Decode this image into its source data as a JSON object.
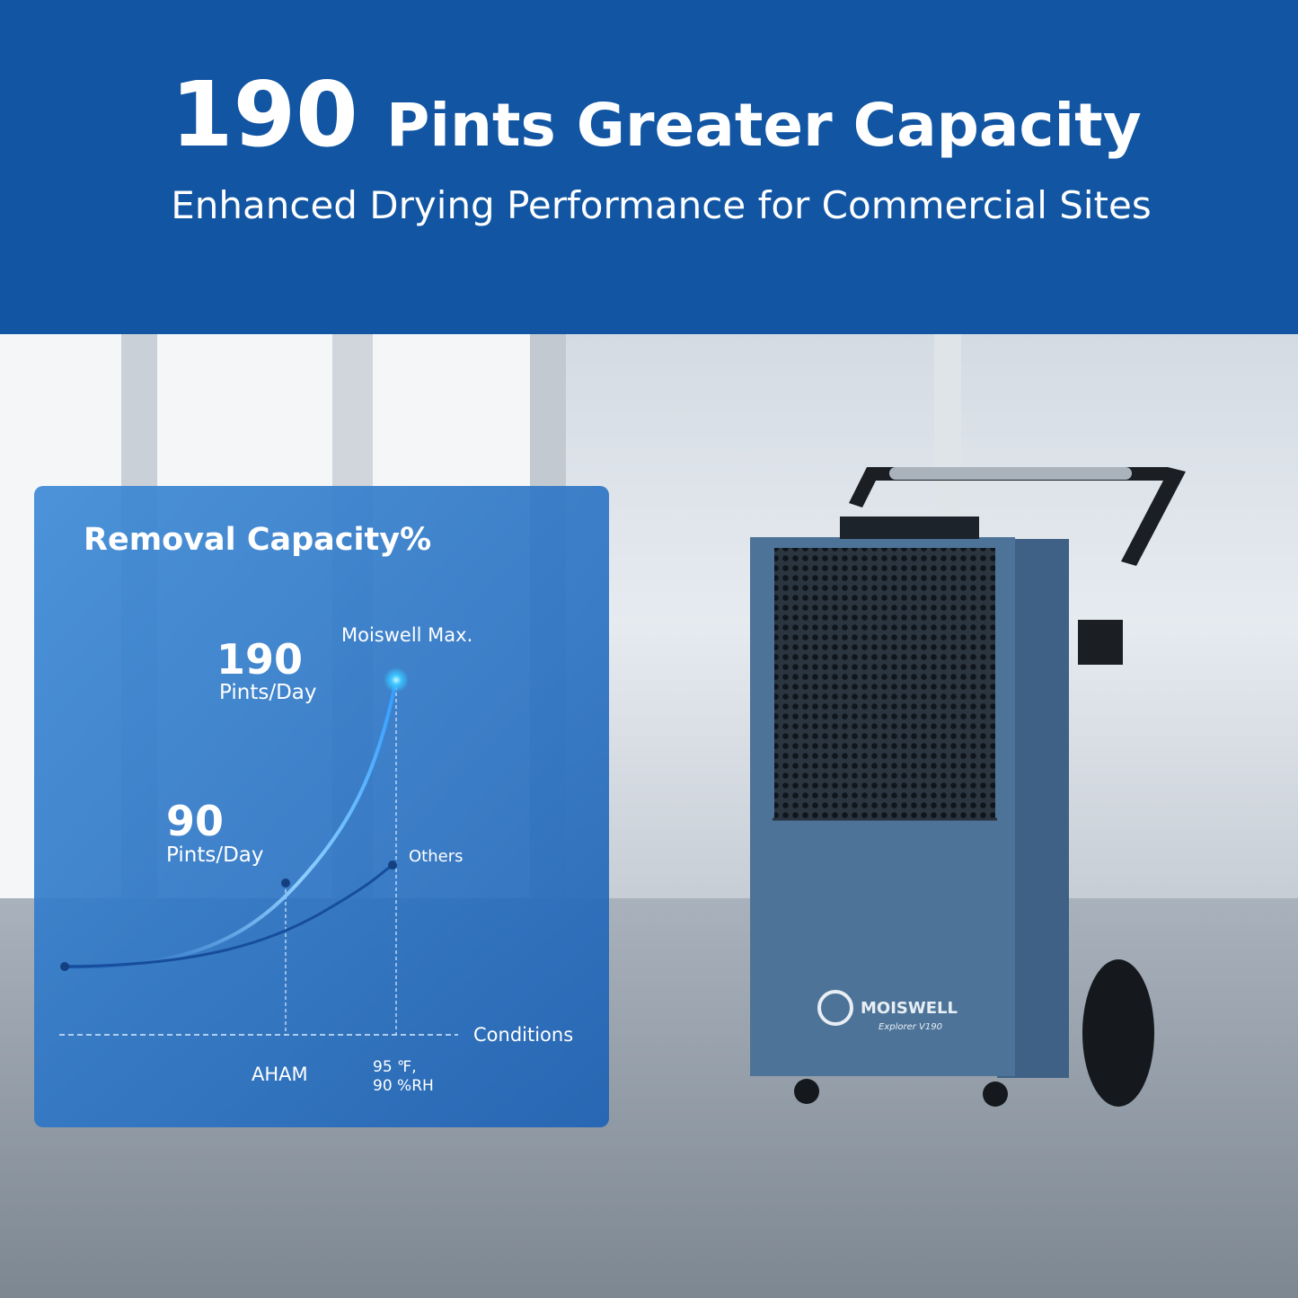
{
  "header": {
    "title_number": "190",
    "title_text": "Pints Greater Capacity",
    "subtitle": "Enhanced Drying Performance for Commercial Sites"
  },
  "panel": {
    "title": "Removal Capacity%",
    "max_value": "190",
    "max_unit": "Pints/Day",
    "max_label": "Moiswell Max.",
    "other_value": "90",
    "other_unit": "Pints/Day",
    "other_label": "Others",
    "axis_label": "Conditions",
    "condition_1": "AHAM",
    "condition_2_line1": "95 ℉,",
    "condition_2_line2": "90 %RH"
  },
  "product": {
    "brand": "MOISWELL",
    "model": "Explorer V190"
  }
}
